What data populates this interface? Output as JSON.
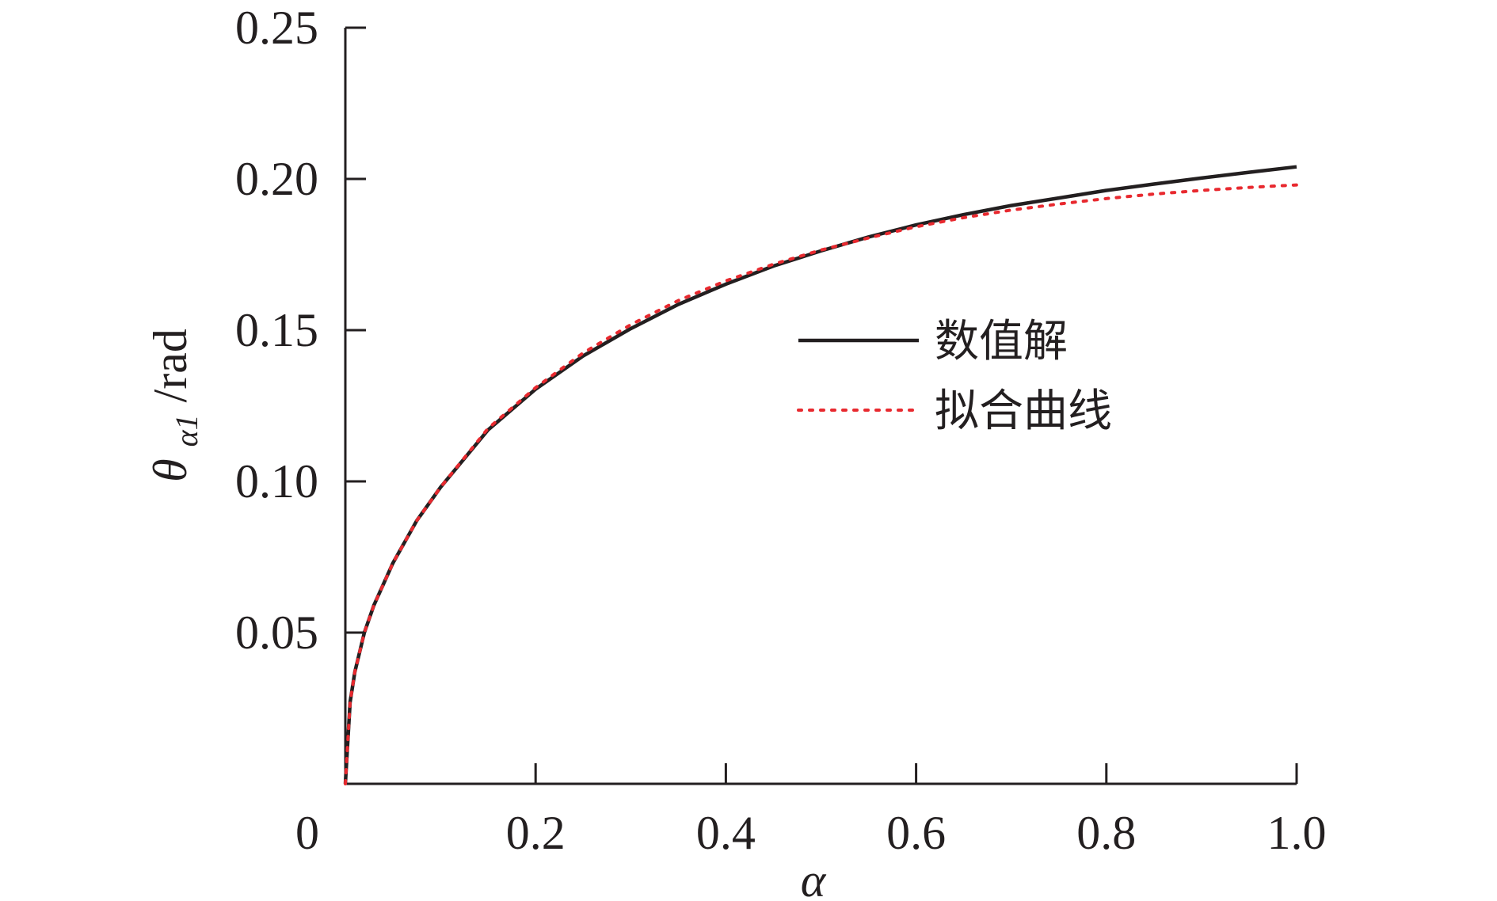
{
  "chart_data": {
    "type": "line",
    "title": "",
    "xlabel": "α",
    "ylabel_main": "θ",
    "ylabel_sub": "α1",
    "ylabel_unit": "/rad",
    "xlim": [
      0,
      1.0
    ],
    "ylim": [
      0,
      0.25
    ],
    "x_ticks": [
      {
        "value": 0.2,
        "label": "0.2"
      },
      {
        "value": 0.4,
        "label": "0.4"
      },
      {
        "value": 0.6,
        "label": "0.6"
      },
      {
        "value": 0.8,
        "label": "0.8"
      },
      {
        "value": 1.0,
        "label": "1.0"
      }
    ],
    "y_ticks": [
      {
        "value": 0.05,
        "label": "0.05"
      },
      {
        "value": 0.1,
        "label": "0.10"
      },
      {
        "value": 0.15,
        "label": "0.15"
      },
      {
        "value": 0.2,
        "label": "0.20"
      },
      {
        "value": 0.25,
        "label": "0.25"
      }
    ],
    "origin_label": "0",
    "grid": false,
    "legend_position": "center-right",
    "x": [
      0,
      0.005,
      0.01,
      0.02,
      0.03,
      0.05,
      0.075,
      0.1,
      0.15,
      0.2,
      0.25,
      0.3,
      0.35,
      0.4,
      0.45,
      0.5,
      0.55,
      0.6,
      0.65,
      0.7,
      0.75,
      0.8,
      0.85,
      0.9,
      0.95,
      1.0
    ],
    "series": [
      {
        "name": "数值解",
        "color": "#231f20",
        "style": "solid",
        "values": [
          0,
          0.027,
          0.037,
          0.05,
          0.059,
          0.073,
          0.087,
          0.098,
          0.117,
          0.1305,
          0.1415,
          0.1505,
          0.1585,
          0.1652,
          0.1712,
          0.1762,
          0.1808,
          0.1848,
          0.1882,
          0.1912,
          0.1937,
          0.1962,
          0.1983,
          0.2003,
          0.2022,
          0.204
        ]
      },
      {
        "name": "拟合曲线",
        "color": "#e8292f",
        "style": "dotted",
        "values": [
          0,
          0.027,
          0.037,
          0.05,
          0.059,
          0.073,
          0.087,
          0.098,
          0.1175,
          0.131,
          0.1425,
          0.1518,
          0.1598,
          0.1663,
          0.1718,
          0.1765,
          0.1805,
          0.1842,
          0.1872,
          0.1897,
          0.1917,
          0.1935,
          0.195,
          0.1962,
          0.1972,
          0.198
        ]
      }
    ]
  }
}
